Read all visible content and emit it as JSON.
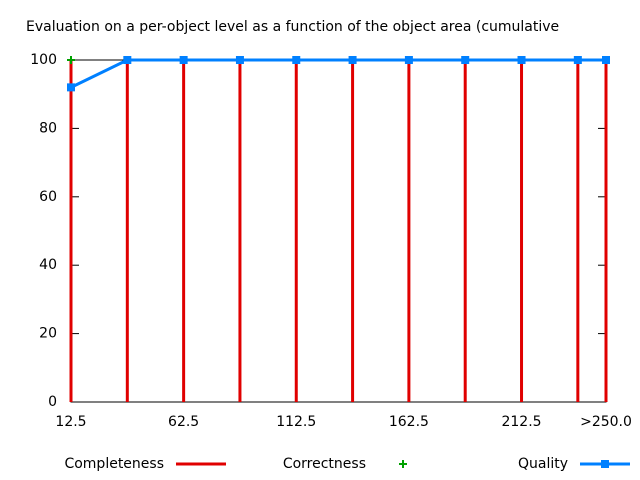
{
  "chart_data": {
    "type": "line",
    "title": "Evaluation on a per-object level as a function of the object area (cumulative",
    "x": [
      12.5,
      37.5,
      62.5,
      87.5,
      112.5,
      137.5,
      162.5,
      187.5,
      212.5,
      237.5,
      250
    ],
    "xlim": [
      12.5,
      250
    ],
    "xticks": [
      12.5,
      62.5,
      112.5,
      162.5,
      212.5,
      {
        "value": 250,
        "label": ">250.0"
      }
    ],
    "ylim": [
      0,
      100
    ],
    "yticks": [
      0,
      20,
      40,
      60,
      80,
      100
    ],
    "series": [
      {
        "name": "Completeness",
        "color": "#e00000",
        "style": "impulses",
        "values": [
          100,
          100,
          100,
          100,
          100,
          100,
          100,
          100,
          100,
          100,
          100
        ]
      },
      {
        "name": "Correctness",
        "color": "#00a000",
        "style": "points",
        "values": [
          100,
          100,
          100,
          100,
          100,
          100,
          100,
          100,
          100,
          100,
          100
        ]
      },
      {
        "name": "Quality",
        "color": "#0080ff",
        "style": "linespoints",
        "values": [
          92,
          100,
          100,
          100,
          100,
          100,
          100,
          100,
          100,
          100,
          100
        ]
      }
    ]
  }
}
